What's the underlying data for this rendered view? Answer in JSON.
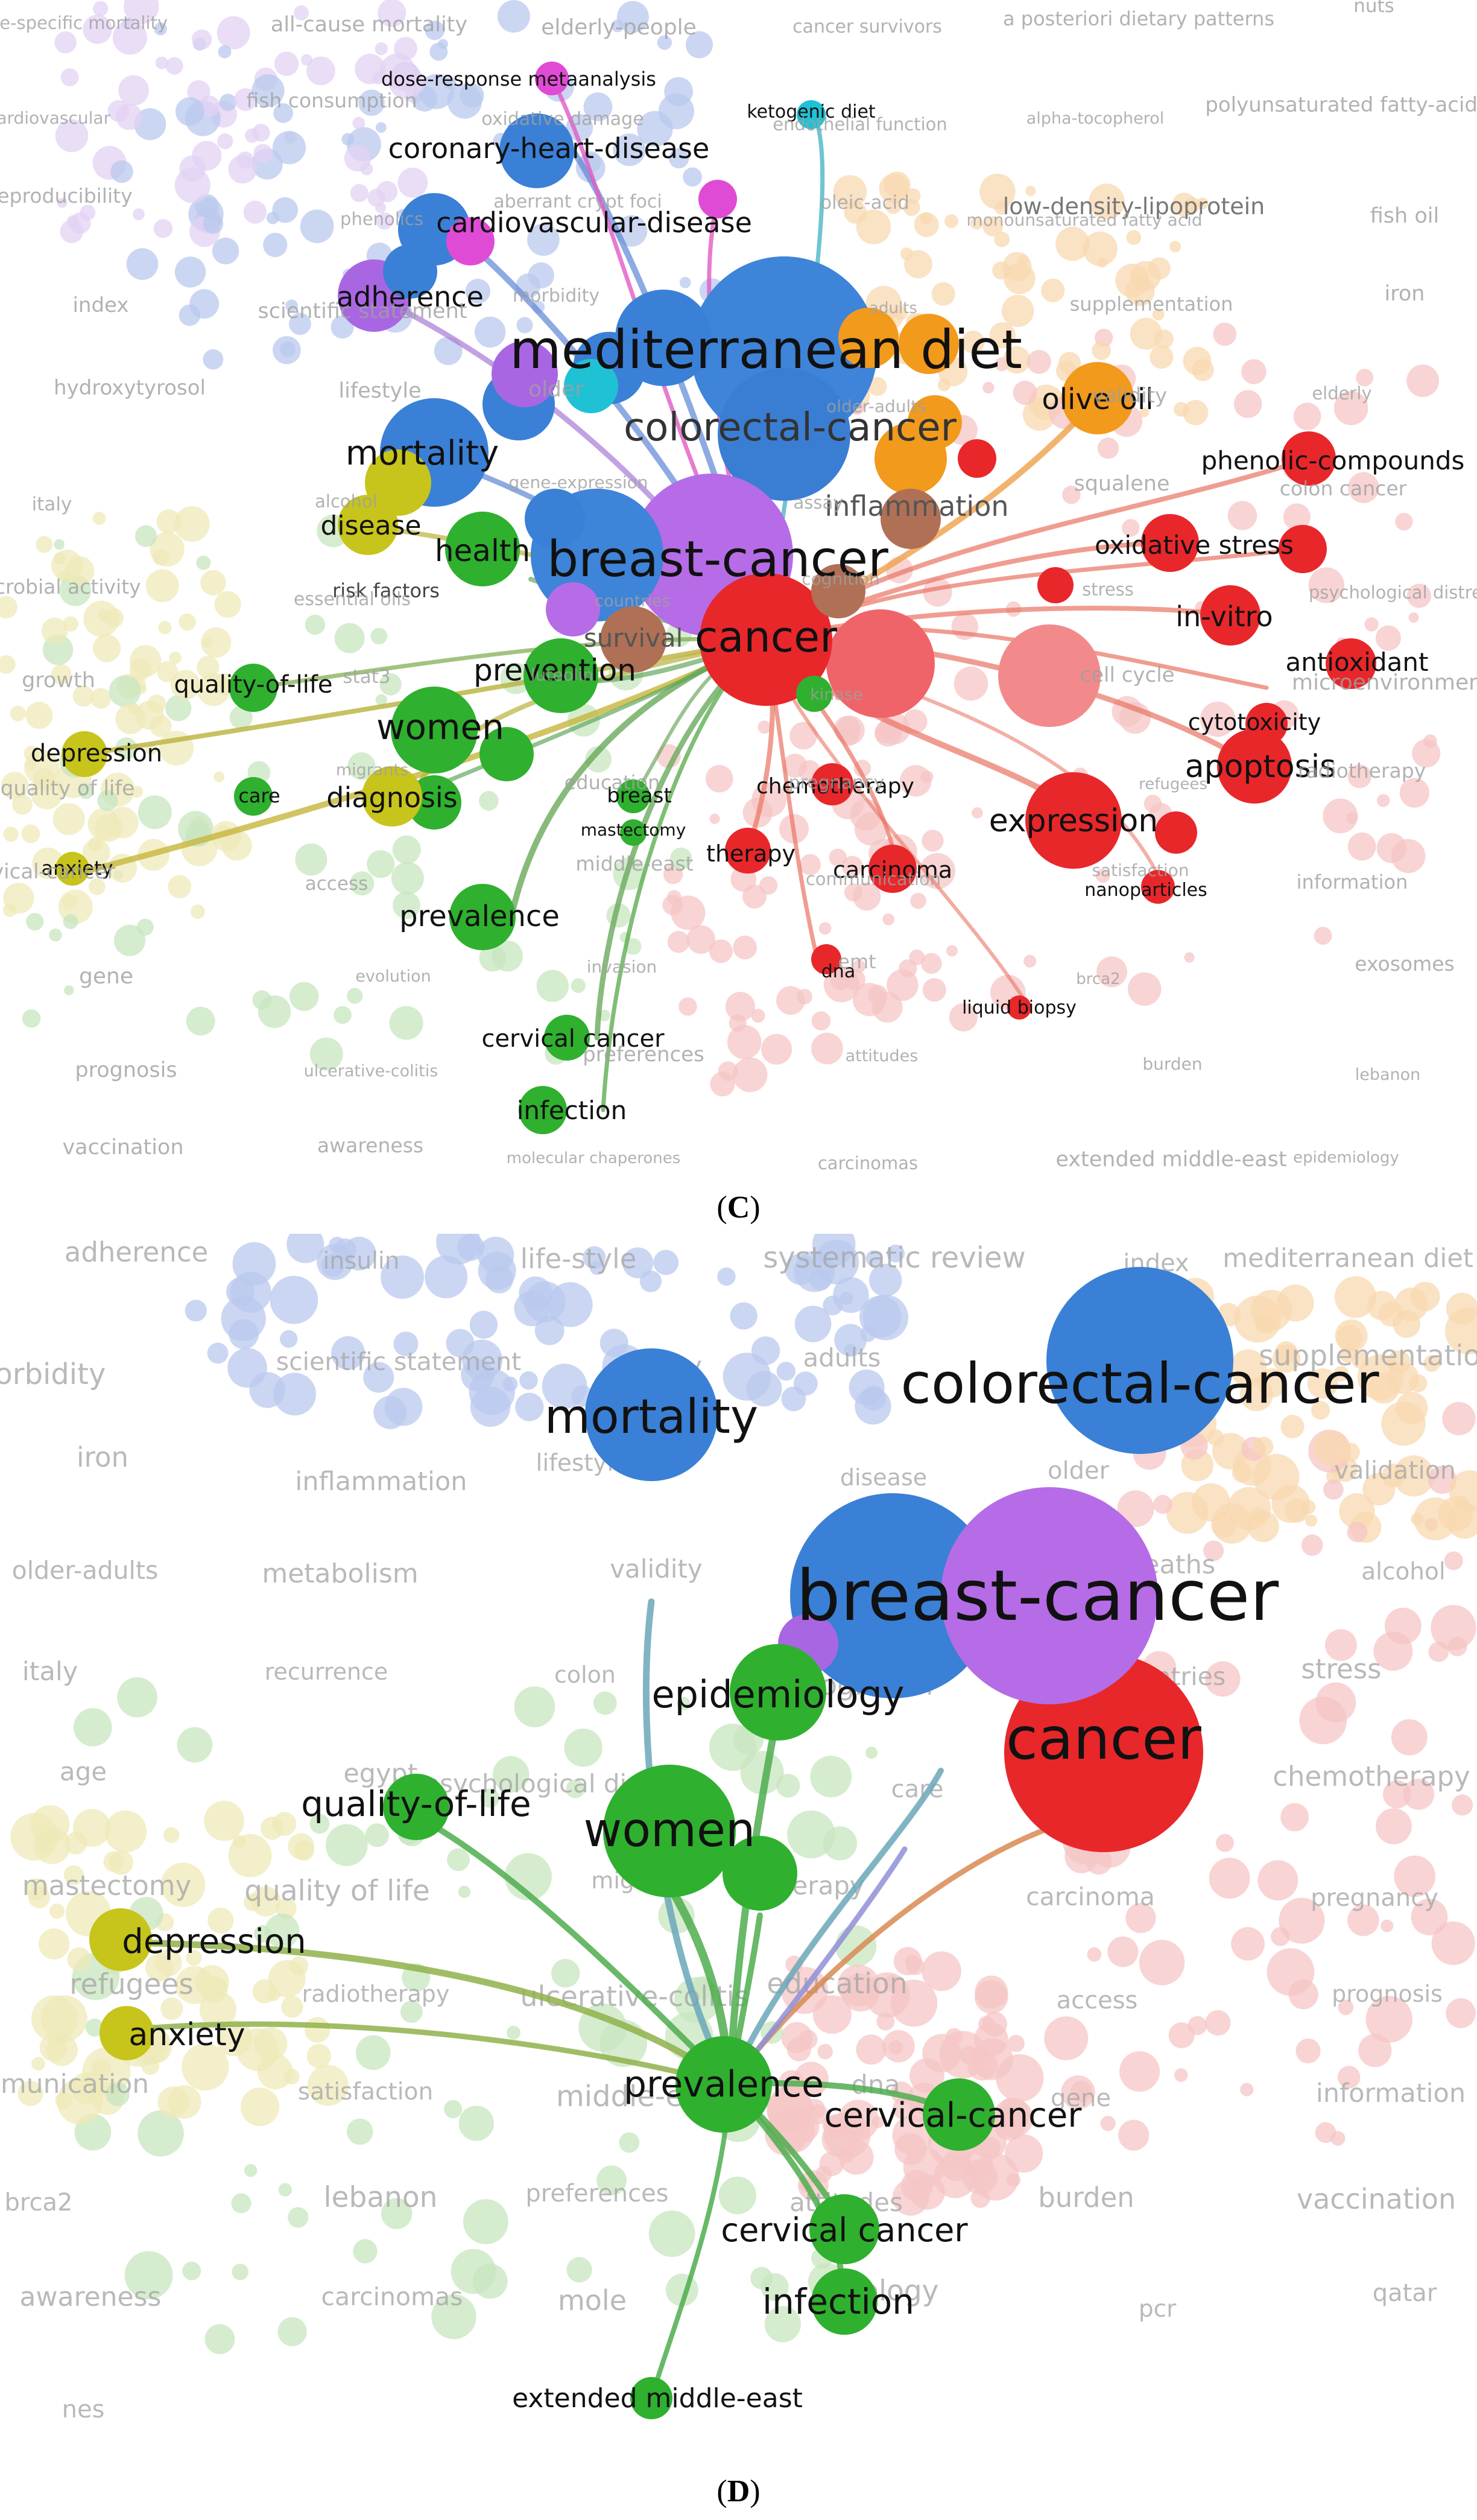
{
  "captions": {
    "c": "C",
    "d": "D"
  },
  "colors": {
    "red": "#e8272b",
    "blue": "#3e84d8",
    "green": "#2fb02f",
    "purple": "#b56ce6",
    "yellow": "#c7c41c",
    "orange": "#f29a1c",
    "cyan": "#1fc2d4",
    "pink": "#e04bd6",
    "brown": "#b07055"
  },
  "panel_c": {
    "nodes": [
      {
        "id": "mediterranean-diet",
        "label": "mediterranean diet",
        "color": "blue",
        "size": 60
      },
      {
        "id": "colorectal-cancer",
        "label": "colorectal-cancer",
        "color": "blue",
        "size": 36
      },
      {
        "id": "breast-cancer",
        "label": "breast-cancer",
        "color": "purple",
        "size": 56
      },
      {
        "id": "cancer",
        "label": "cancer",
        "color": "red",
        "size": 44
      },
      {
        "id": "mortality",
        "label": "mortality",
        "color": "blue",
        "size": 34
      },
      {
        "id": "coronary-heart-disease",
        "label": "coronary-heart-disease",
        "color": "blue",
        "size": 28
      },
      {
        "id": "cardiovascular-disease",
        "label": "cardiovascular-disease",
        "color": "blue",
        "size": 28
      },
      {
        "id": "adherence",
        "label": "adherence",
        "color": "purple",
        "size": 27
      },
      {
        "id": "dose-response-metaanalysis",
        "label": "dose-response metaanalysis",
        "color": "pink",
        "size": 20
      },
      {
        "id": "ketogenic-diet",
        "label": "ketogenic diet",
        "color": "cyan",
        "size": 18
      },
      {
        "id": "olive-oil",
        "label": "olive oil",
        "color": "orange",
        "size": 28
      },
      {
        "id": "phenolic-compounds",
        "label": "phenolic-compounds",
        "color": "red",
        "size": 26
      },
      {
        "id": "oxidative-stress",
        "label": "oxidative stress",
        "color": "red",
        "size": 26
      },
      {
        "id": "in-vitro",
        "label": "in-vitro",
        "color": "red",
        "size": 26
      },
      {
        "id": "antioxidant",
        "label": "antioxidant",
        "color": "red",
        "size": 26
      },
      {
        "id": "cytotoxicity",
        "label": "cytotoxicity",
        "color": "red",
        "size": 22
      },
      {
        "id": "apoptosis",
        "label": "apoptosis",
        "color": "red",
        "size": 32
      },
      {
        "id": "expression",
        "label": "expression",
        "color": "red",
        "size": 32
      },
      {
        "id": "chemotherapy",
        "label": "chemotherapy",
        "color": "red",
        "size": 22
      },
      {
        "id": "therapy",
        "label": "therapy",
        "color": "red",
        "size": 22
      },
      {
        "id": "carcinoma",
        "label": "carcinoma",
        "color": "red",
        "size": 22
      },
      {
        "id": "nanoparticles",
        "label": "nanoparticles",
        "color": "red",
        "size": 18
      },
      {
        "id": "dna",
        "label": "dna",
        "color": "red",
        "size": 18
      },
      {
        "id": "liquid-biopsy",
        "label": "liquid biopsy",
        "color": "red",
        "size": 18
      },
      {
        "id": "inflammation",
        "label": "inflammation",
        "color": "brown",
        "size": 26
      },
      {
        "id": "health",
        "label": "health",
        "color": "green",
        "size": 30
      },
      {
        "id": "prevention",
        "label": "prevention",
        "color": "green",
        "size": 30
      },
      {
        "id": "women",
        "label": "women",
        "color": "green",
        "size": 32
      },
      {
        "id": "quality-of-life",
        "label": "quality-of-life",
        "color": "green",
        "size": 24
      },
      {
        "id": "care",
        "label": "care",
        "color": "green",
        "size": 18
      },
      {
        "id": "diagnosis",
        "label": "diagnosis",
        "color": "yellow",
        "size": 26
      },
      {
        "id": "disease",
        "label": "disease",
        "color": "yellow",
        "size": 26
      },
      {
        "id": "depression",
        "label": "depression",
        "color": "yellow",
        "size": 22
      },
      {
        "id": "anxiety",
        "label": "anxiety",
        "color": "yellow",
        "size": 18
      },
      {
        "id": "prevalence",
        "label": "prevalence",
        "color": "green",
        "size": 28
      },
      {
        "id": "cervical-cancer-1",
        "label": "cervical cancer",
        "color": "green",
        "size": 22
      },
      {
        "id": "infection",
        "label": "infection",
        "color": "green",
        "size": 22
      },
      {
        "id": "breast",
        "label": "breast",
        "color": "green",
        "size": 18
      },
      {
        "id": "mastectomy",
        "label": "mastectomy",
        "color": "green",
        "size": 16
      },
      {
        "id": "survival",
        "label": "survival",
        "color": "brown",
        "size": 22
      },
      {
        "id": "risk-factors",
        "label": "risk factors",
        "color": "yellow",
        "size": 18
      },
      {
        "id": "low-density-lipoprotein",
        "label": "low-density-lipoprotein",
        "color": "orange",
        "size": 16
      }
    ],
    "faded_labels": [
      "cause-specific mortality",
      "all-cause mortality",
      "elderly-people",
      "cancer survivors",
      "a posteriori dietary patterns",
      "nuts",
      "cardiovascular",
      "fish consumption",
      "oxidative damage",
      "endothelial function",
      "alpha-tocopherol",
      "polyunsaturated fatty-acids",
      "reproducibility",
      "phenolics",
      "aberrant crypt foci",
      "oleic-acid",
      "monounsaturated fatty acid",
      "fish oil",
      "index",
      "scientific statement",
      "morbidity",
      "adults",
      "supplementation",
      "iron",
      "hydroxytyrosol",
      "lifestyle",
      "older",
      "older-adults",
      "validity",
      "elderly",
      "italy",
      "alcohol",
      "gene-expression",
      "assay",
      "squalene",
      "colon cancer",
      "antimicrobial activity",
      "essential oils",
      "countries",
      "cognition",
      "stress",
      "psychological distress",
      "growth",
      "stat3",
      "luteolin",
      "kinase",
      "cell cycle",
      "microenvironment",
      "quality of life",
      "migrants",
      "education",
      "pregnancy",
      "refugees",
      "radiotherapy",
      "cervical-cancer",
      "access",
      "middle-east",
      "communication",
      "satisfaction",
      "information",
      "gene",
      "evolution",
      "invasion",
      "emt",
      "brca2",
      "exosomes",
      "prognosis",
      "ulcerative-colitis",
      "preferences",
      "attitudes",
      "burden",
      "lebanon",
      "vaccination",
      "awareness",
      "molecular chaperones",
      "carcinomas",
      "extended middle-east",
      "epidemiology"
    ]
  },
  "panel_d": {
    "nodes": [
      {
        "id": "mortality",
        "label": "mortality",
        "color": "blue",
        "size": 40
      },
      {
        "id": "colorectal-cancer",
        "label": "colorectal-cancer",
        "color": "blue",
        "size": 48
      },
      {
        "id": "breast-cancer",
        "label": "breast-cancer",
        "color": "purple",
        "size": 60
      },
      {
        "id": "cancer",
        "label": "cancer",
        "color": "red",
        "size": 52
      },
      {
        "id": "epidemiology",
        "label": "epidemiology",
        "color": "green",
        "size": 34
      },
      {
        "id": "women",
        "label": "women",
        "color": "green",
        "size": 40
      },
      {
        "id": "quality-of-life",
        "label": "quality-of-life",
        "color": "green",
        "size": 30
      },
      {
        "id": "depression",
        "label": "depression",
        "color": "yellow",
        "size": 28
      },
      {
        "id": "anxiety",
        "label": "anxiety",
        "color": "yellow",
        "size": 26
      },
      {
        "id": "prevalence",
        "label": "prevalence",
        "color": "green",
        "size": 34
      },
      {
        "id": "cervical-cancer",
        "label": "cervical-cancer",
        "color": "green",
        "size": 30
      },
      {
        "id": "cervical-cancer-2",
        "label": "cervical cancer",
        "color": "green",
        "size": 28
      },
      {
        "id": "infection",
        "label": "infection",
        "color": "green",
        "size": 28
      },
      {
        "id": "extended-middle-east",
        "label": "extended middle-east",
        "color": "green",
        "size": 22
      }
    ],
    "faded_labels": [
      "adherence",
      "insulin",
      "life-style",
      "systematic review",
      "index",
      "mediterranean diet",
      "morbidity",
      "scientific statement",
      "quality",
      "adults",
      "heme iron",
      "supplementation",
      "iron",
      "inflammation",
      "lifestyle",
      "disease",
      "older",
      "validation",
      "older-adults",
      "metabolism",
      "validity",
      "elderly",
      "deaths",
      "alcohol",
      "italy",
      "recurrence",
      "colon",
      "cognition",
      "countries",
      "stress",
      "age",
      "egypt",
      "psychological distress",
      "care",
      "breast",
      "chemotherapy",
      "mastectomy",
      "quality of life",
      "migrants",
      "therapy",
      "carcinoma",
      "pregnancy",
      "refugees",
      "radiotherapy",
      "ulcerative-colitis",
      "education",
      "access",
      "prognosis",
      "communication",
      "satisfaction",
      "middle-east",
      "dna",
      "gene",
      "information",
      "brca2",
      "lebanon",
      "preferences",
      "attitudes",
      "burden",
      "vaccination",
      "awareness",
      "carcinomas",
      "mole",
      "ecology",
      "pcr",
      "qatar",
      "nes"
    ]
  }
}
